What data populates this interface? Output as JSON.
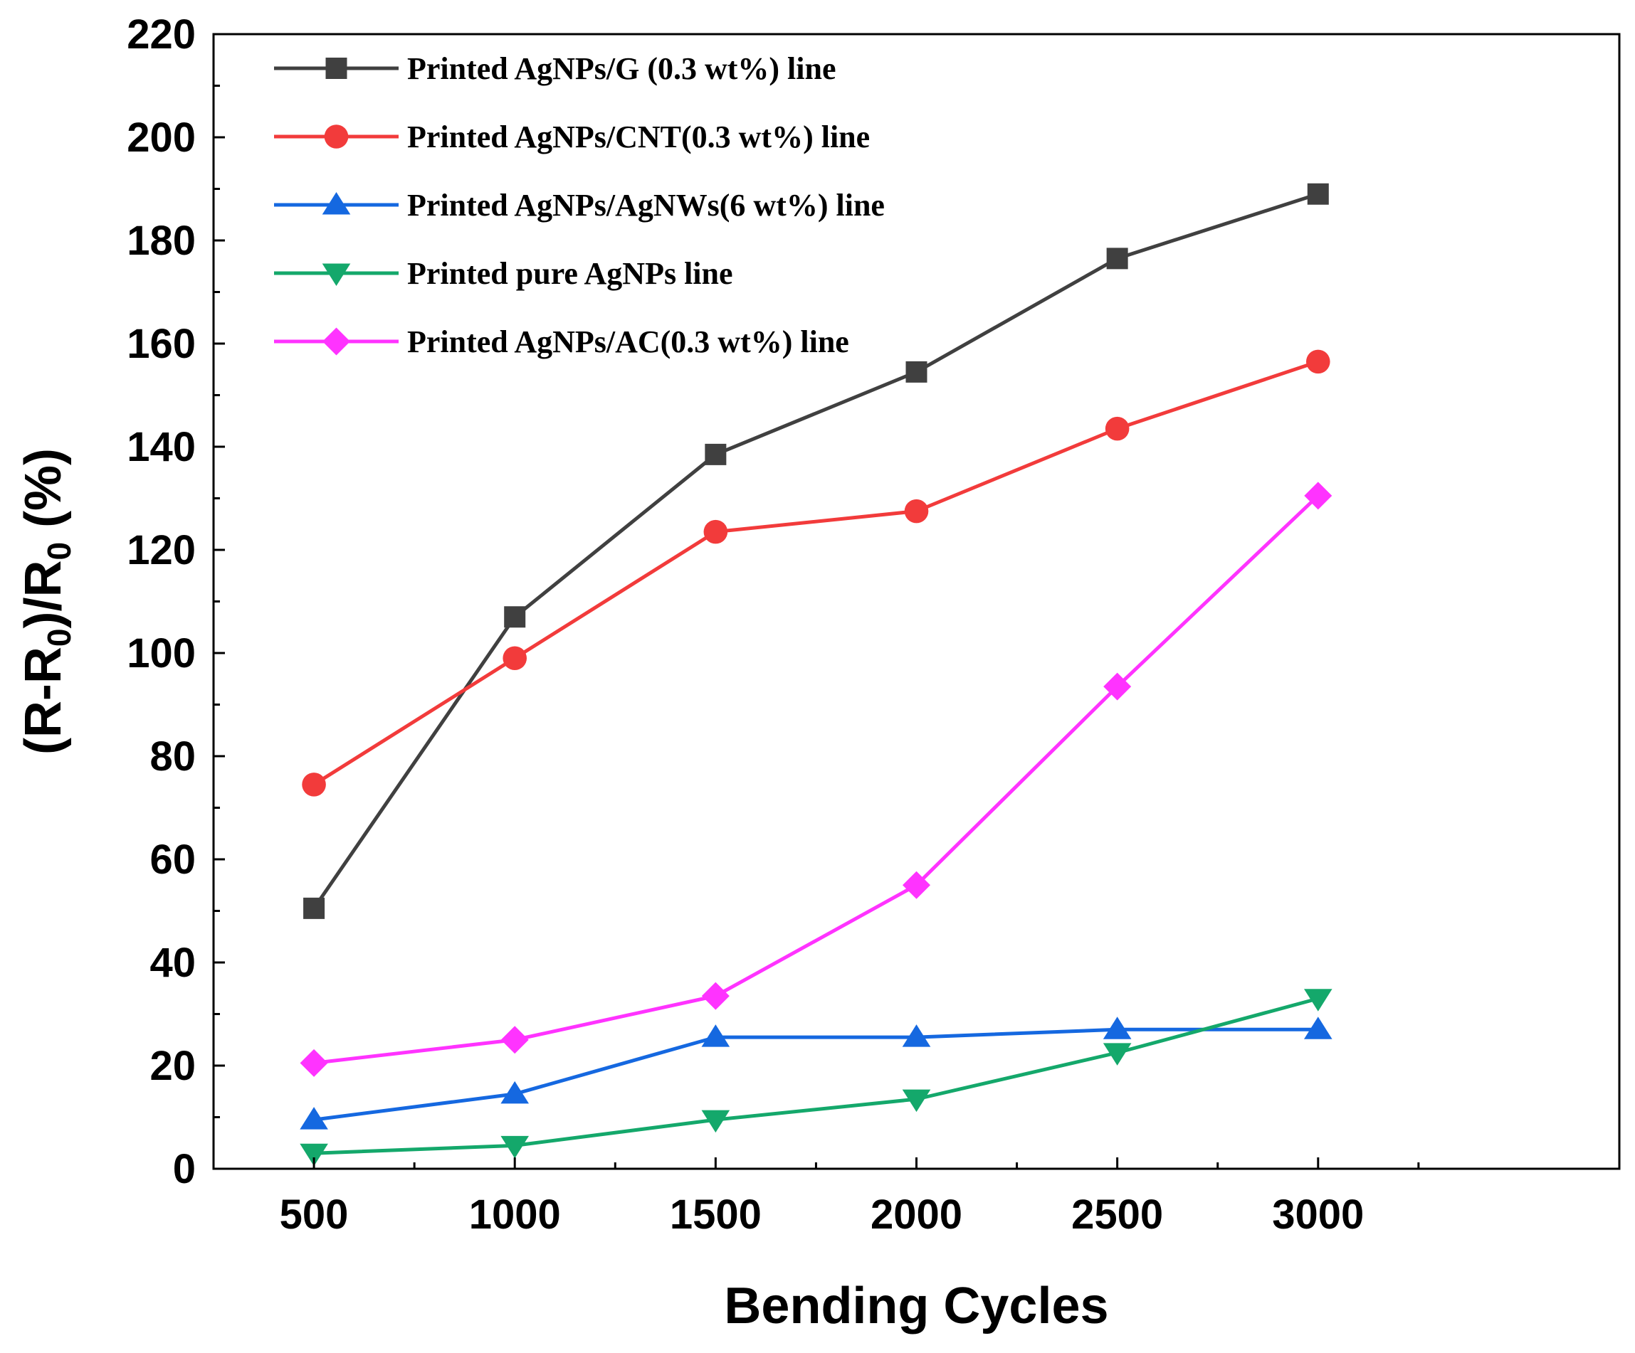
{
  "chart_data": {
    "type": "line",
    "title": "",
    "xlabel": "Bending Cycles",
    "ylabel": {
      "main": "(R-R",
      "sub1": "0",
      "mid": ")/R",
      "sub2": "0",
      "end": " (%)"
    },
    "x": [
      500,
      1000,
      1500,
      2000,
      2500,
      3000
    ],
    "x_ticks": [
      "500",
      "1000",
      "1500",
      "2000",
      "2500",
      "3000"
    ],
    "xlim": [
      250,
      3750
    ],
    "ylim": [
      0,
      220
    ],
    "y_ticks": [
      "0",
      "20",
      "40",
      "60",
      "80",
      "100",
      "120",
      "140",
      "160",
      "180",
      "200",
      "220"
    ],
    "legend_position": "top-left",
    "grid": false,
    "series": [
      {
        "name": "Printed AgNPs/G (0.3 wt%) line",
        "color": "#404040",
        "marker": "square",
        "values": [
          50.5,
          107,
          138.5,
          154.5,
          176.5,
          189
        ]
      },
      {
        "name": "Printed AgNPs/CNT(0.3 wt%) line",
        "color": "#f23b3b",
        "marker": "circle",
        "values": [
          74.5,
          99,
          123.5,
          127.5,
          143.5,
          156.5
        ]
      },
      {
        "name": "Printed AgNPs/AgNWs(6 wt%) line",
        "color": "#1568e0",
        "marker": "triangle-up",
        "values": [
          9.5,
          14.5,
          25.5,
          25.5,
          27,
          27
        ]
      },
      {
        "name": "Printed pure AgNPs line",
        "color": "#14a86b",
        "marker": "triangle-down",
        "values": [
          3,
          4.5,
          9.5,
          13.5,
          22.5,
          33
        ]
      },
      {
        "name": "Printed AgNPs/AC(0.3 wt%) line",
        "color": "#ff33ff",
        "marker": "diamond",
        "values": [
          20.5,
          25,
          33.5,
          55,
          93.5,
          130.5
        ]
      }
    ]
  }
}
